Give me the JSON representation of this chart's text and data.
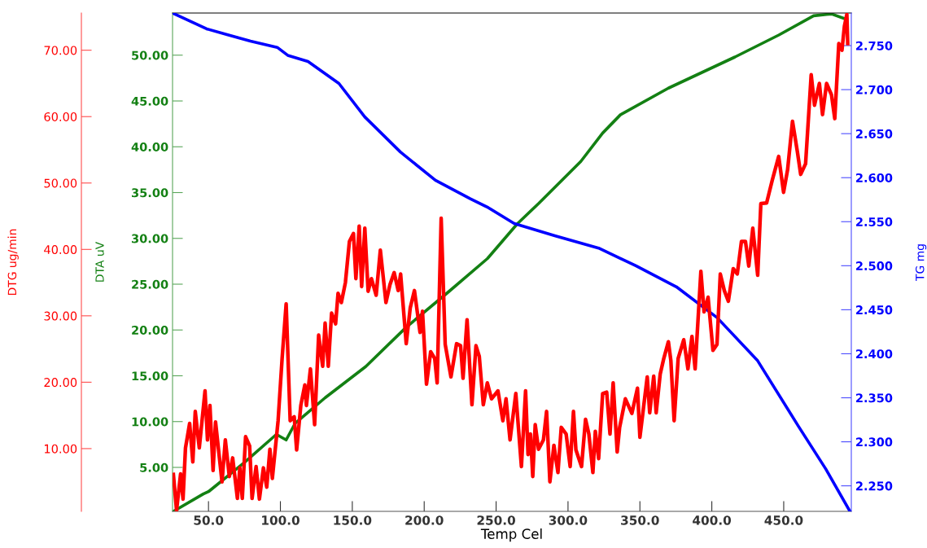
{
  "chart_data": {
    "type": "line",
    "xlabel": "Temp Cel",
    "ylabel": "DTA uV",
    "y2label": "TG mg",
    "y3label": "DTG ug/min",
    "xlim": [
      25,
      497
    ],
    "xticks": [
      {
        "value": 50,
        "label": "50.0"
      },
      {
        "value": 100,
        "label": "100.0"
      },
      {
        "value": 150,
        "label": "150.0"
      },
      {
        "value": 200,
        "label": "200.0"
      },
      {
        "value": 250,
        "label": "250.0"
      },
      {
        "value": 300,
        "label": "300.0"
      },
      {
        "value": 350,
        "label": "350.0"
      },
      {
        "value": 400,
        "label": "400.0"
      },
      {
        "value": 450,
        "label": "450.0"
      }
    ],
    "ylim": [
      0.2,
      54.6
    ],
    "yticks": [
      {
        "value": 5,
        "label": "5.00"
      },
      {
        "value": 10,
        "label": "10.00"
      },
      {
        "value": 15,
        "label": "15.00"
      },
      {
        "value": 20,
        "label": "20.00"
      },
      {
        "value": 25,
        "label": "25.00"
      },
      {
        "value": 30,
        "label": "30.00"
      },
      {
        "value": 35,
        "label": "35.00"
      },
      {
        "value": 40,
        "label": "40.00"
      },
      {
        "value": 45,
        "label": "45.00"
      },
      {
        "value": 50,
        "label": "50.00"
      }
    ],
    "y2lim": [
      2.221,
      2.787
    ],
    "y2ticks": [
      {
        "value": 2.25,
        "label": "2.250"
      },
      {
        "value": 2.3,
        "label": "2.300"
      },
      {
        "value": 2.35,
        "label": "2.350"
      },
      {
        "value": 2.4,
        "label": "2.400"
      },
      {
        "value": 2.45,
        "label": "2.450"
      },
      {
        "value": 2.5,
        "label": "2.500"
      },
      {
        "value": 2.55,
        "label": "2.550"
      },
      {
        "value": 2.6,
        "label": "2.600"
      },
      {
        "value": 2.65,
        "label": "2.650"
      },
      {
        "value": 2.7,
        "label": "2.700"
      },
      {
        "value": 2.75,
        "label": "2.750"
      }
    ],
    "y3lim": [
      0.55,
      75.6
    ],
    "y3ticks": [
      {
        "value": 10,
        "label": "10.00"
      },
      {
        "value": 20,
        "label": "20.00"
      },
      {
        "value": 30,
        "label": "30.00"
      },
      {
        "value": 40,
        "label": "40.00"
      },
      {
        "value": 50,
        "label": "50.00"
      },
      {
        "value": 60,
        "label": "60.00"
      },
      {
        "value": 70,
        "label": "70.00"
      }
    ],
    "grid": false,
    "marker": "none",
    "line_style": "solid",
    "series": [
      {
        "axis": "y",
        "color": "#138013",
        "x": [
          25.6,
          46.4,
          50.4,
          74.7,
          97.2,
          104.0,
          110.2,
          131.1,
          159.3,
          187.5,
          215.7,
          244.0,
          264.8,
          279.5,
          308.9,
          324.1,
          336.5,
          369.8,
          416.1,
          446.6,
          470.8,
          483.2,
          493.9
        ],
        "values": [
          0.2,
          2.1,
          2.4,
          5.5,
          8.6,
          8.0,
          9.8,
          12.6,
          16.0,
          20.3,
          24.0,
          27.8,
          31.6,
          33.8,
          38.4,
          41.5,
          43.5,
          46.4,
          49.8,
          52.2,
          54.3,
          54.5,
          53.9
        ]
      },
      {
        "axis": "y2",
        "color": "#0000ff",
        "x": [
          25.0,
          48.7,
          63.9,
          79.2,
          97.8,
          105.1,
          119.2,
          140.7,
          158.7,
          183.6,
          207.8,
          232.1,
          244.5,
          262.6,
          290.8,
          321.3,
          347.2,
          375.4,
          403.7,
          431.9,
          460.1,
          479.3,
          495.7
        ],
        "values": [
          2.787,
          2.769,
          2.762,
          2.755,
          2.748,
          2.739,
          2.732,
          2.707,
          2.669,
          2.629,
          2.597,
          2.576,
          2.566,
          2.548,
          2.534,
          2.52,
          2.5,
          2.476,
          2.441,
          2.392,
          2.318,
          2.269,
          2.222
        ]
      },
      {
        "axis": "y3",
        "color": "#ff0000",
        "x": [
          25.6,
          27.8,
          30.6,
          32.3,
          34.0,
          36.9,
          39.1,
          40.8,
          43.6,
          47.6,
          49.3,
          51.0,
          53.2,
          54.9,
          59.4,
          61.7,
          64.5,
          66.8,
          70.1,
          71.8,
          73.5,
          75.8,
          78.6,
          80.3,
          83.1,
          85.4,
          88.2,
          90.5,
          92.7,
          94.4,
          98.4,
          101.2,
          104.0,
          106.8,
          109.6,
          111.3,
          114.2,
          117.0,
          118.1,
          120.9,
          123.8,
          126.6,
          129.4,
          131.1,
          133.3,
          135.6,
          138.4,
          140.1,
          142.4,
          145.2,
          148.0,
          150.8,
          152.5,
          154.8,
          156.5,
          158.7,
          161.0,
          163.3,
          166.6,
          169.5,
          173.4,
          176.2,
          179.1,
          181.9,
          183.6,
          187.5,
          190.3,
          193.2,
          197.1,
          198.8,
          201.6,
          204.5,
          207.3,
          209.0,
          211.8,
          214.6,
          218.6,
          222.5,
          225.3,
          227.0,
          229.8,
          233.2,
          236.0,
          238.3,
          241.1,
          243.9,
          246.8,
          251.3,
          254.7,
          256.9,
          259.7,
          263.7,
          267.6,
          270.5,
          272.2,
          273.9,
          275.5,
          277.2,
          279.5,
          282.9,
          285.1,
          287.4,
          290.2,
          293.0,
          295.3,
          298.7,
          301.5,
          303.8,
          305.5,
          309.4,
          312.2,
          314.5,
          317.3,
          319.0,
          321.3,
          324.1,
          326.9,
          329.2,
          331.4,
          334.2,
          335.9,
          339.9,
          344.4,
          348.3,
          350.0,
          355.1,
          356.8,
          359.6,
          361.3,
          364.1,
          366.4,
          369.8,
          371.5,
          373.8,
          376.6,
          380.5,
          383.4,
          386.2,
          388.4,
          392.4,
          394.6,
          397.4,
          400.8,
          403.6,
          405.9,
          408.7,
          411.5,
          414.9,
          417.7,
          420.6,
          423.4,
          425.7,
          428.5,
          431.9,
          434.1,
          438.1,
          442.0,
          446.5,
          449.9,
          452.7,
          456.1,
          459.5,
          461.8,
          465.2,
          469.1,
          471.4,
          474.8,
          477.0,
          479.8,
          483.2,
          485.5,
          488.3,
          490.5,
          492.2,
          493.9,
          494.5
        ],
        "values": [
          6.1,
          0.7,
          6.2,
          2.4,
          10.1,
          13.8,
          8.0,
          15.6,
          10.1,
          18.7,
          11.3,
          16.5,
          6.7,
          14.0,
          5.0,
          11.3,
          5.8,
          8.6,
          2.5,
          7.1,
          2.5,
          11.8,
          10.4,
          2.5,
          7.3,
          2.4,
          7.1,
          4.2,
          9.9,
          5.5,
          14.2,
          23.6,
          31.8,
          14.2,
          14.8,
          9.8,
          16.5,
          19.6,
          16.5,
          22.0,
          13.6,
          27.1,
          22.4,
          28.9,
          22.4,
          30.4,
          28.8,
          33.4,
          32.0,
          35.0,
          41.2,
          42.4,
          35.6,
          43.5,
          34.4,
          43.2,
          33.7,
          35.6,
          33.1,
          39.9,
          32.0,
          34.7,
          36.5,
          33.8,
          36.3,
          25.8,
          31.2,
          33.8,
          27.5,
          30.7,
          19.7,
          24.6,
          23.6,
          19.9,
          44.7,
          25.7,
          20.8,
          25.8,
          25.5,
          20.6,
          29.4,
          16.6,
          25.5,
          23.9,
          16.6,
          19.9,
          17.5,
          18.7,
          14.2,
          17.5,
          11.3,
          18.3,
          7.3,
          18.7,
          9.1,
          12.2,
          5.8,
          13.6,
          9.9,
          11.3,
          15.6,
          5.0,
          10.5,
          6.4,
          13.2,
          12.2,
          7.3,
          15.6,
          9.8,
          7.3,
          14.4,
          12.2,
          6.4,
          12.6,
          8.5,
          18.3,
          18.5,
          12.2,
          19.9,
          9.5,
          13.2,
          17.5,
          15.3,
          19.1,
          11.7,
          20.8,
          15.4,
          20.9,
          15.4,
          21.2,
          23.4,
          26.1,
          23.3,
          14.2,
          23.6,
          26.4,
          22.0,
          26.9,
          22.0,
          36.7,
          30.6,
          32.8,
          24.8,
          25.7,
          36.3,
          33.8,
          32.2,
          37.1,
          36.3,
          41.2,
          41.2,
          37.5,
          43.2,
          36.1,
          46.9,
          47.0,
          50.4,
          54.0,
          48.6,
          52.0,
          59.3,
          54.7,
          51.3,
          52.9,
          66.3,
          61.7,
          65.0,
          60.3,
          65.0,
          63.3,
          59.7,
          71.0,
          70.0,
          73.6,
          75.4,
          71.0
        ]
      }
    ]
  }
}
